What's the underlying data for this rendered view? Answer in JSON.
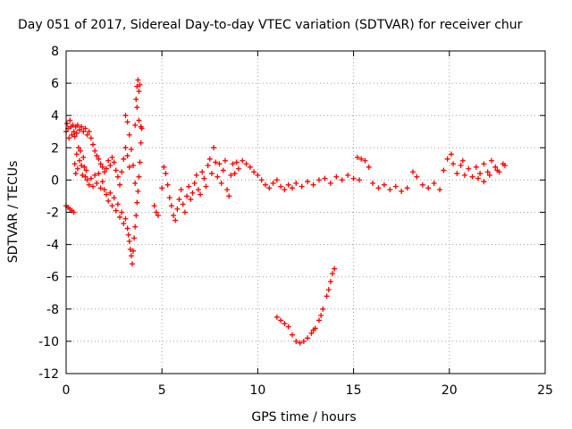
{
  "chart_data": {
    "type": "scatter",
    "title": "Day 051 of 2017, Sidereal Day-to-day VTEC variation (SDTVAR) for receiver chur",
    "xlabel": "GPS time / hours",
    "ylabel": "SDTVAR / TECUs",
    "xlim": [
      0,
      25
    ],
    "ylim": [
      -12,
      8
    ],
    "xticks": [
      0,
      5,
      10,
      15,
      20,
      25
    ],
    "yticks": [
      -12,
      -10,
      -8,
      -6,
      -4,
      -2,
      0,
      2,
      4,
      6,
      8
    ],
    "grid": true,
    "marker": "+",
    "color": "#ff0000",
    "series": [
      {
        "name": "SDTVAR",
        "points": [
          [
            0.0,
            3.0
          ],
          [
            0.05,
            3.5
          ],
          [
            0.1,
            3.2
          ],
          [
            0.15,
            2.6
          ],
          [
            0.2,
            3.7
          ],
          [
            0.25,
            3.3
          ],
          [
            0.3,
            2.8
          ],
          [
            0.35,
            3.4
          ],
          [
            0.4,
            3.0
          ],
          [
            0.45,
            2.7
          ],
          [
            0.5,
            3.3
          ],
          [
            0.55,
            2.9
          ],
          [
            0.6,
            3.4
          ],
          [
            0.7,
            3.1
          ],
          [
            0.8,
            3.3
          ],
          [
            0.9,
            3.0
          ],
          [
            1.0,
            3.2
          ],
          [
            1.1,
            2.8
          ],
          [
            1.2,
            3.0
          ],
          [
            1.3,
            2.6
          ],
          [
            1.4,
            2.2
          ],
          [
            1.5,
            1.8
          ],
          [
            1.6,
            1.5
          ],
          [
            1.7,
            1.3
          ],
          [
            1.8,
            1.0
          ],
          [
            1.9,
            0.8
          ],
          [
            2.0,
            0.5
          ],
          [
            2.1,
            0.7
          ],
          [
            2.2,
            1.2
          ],
          [
            2.3,
            0.9
          ],
          [
            2.4,
            1.4
          ],
          [
            2.5,
            1.1
          ],
          [
            2.6,
            0.6
          ],
          [
            2.7,
            0.2
          ],
          [
            2.8,
            -0.3
          ],
          [
            2.9,
            0.5
          ],
          [
            3.0,
            1.3
          ],
          [
            3.1,
            2.0
          ],
          [
            3.2,
            1.5
          ],
          [
            3.3,
            0.8
          ],
          [
            0.45,
            1.0
          ],
          [
            0.5,
            0.4
          ],
          [
            0.55,
            1.6
          ],
          [
            0.6,
            0.7
          ],
          [
            0.65,
            2.0
          ],
          [
            0.7,
            1.2
          ],
          [
            0.75,
            1.8
          ],
          [
            0.8,
            0.9
          ],
          [
            0.85,
            0.3
          ],
          [
            0.9,
            1.4
          ],
          [
            0.95,
            0.8
          ],
          [
            1.0,
            0.2
          ],
          [
            1.05,
            0.6
          ],
          [
            1.1,
            0.0
          ],
          [
            1.2,
            -0.3
          ],
          [
            1.3,
            0.1
          ],
          [
            1.4,
            -0.4
          ],
          [
            1.5,
            0.3
          ],
          [
            1.6,
            -0.2
          ],
          [
            1.7,
            0.4
          ],
          [
            1.8,
            -0.5
          ],
          [
            1.9,
            -0.1
          ],
          [
            2.0,
            -0.6
          ],
          [
            2.1,
            -0.9
          ],
          [
            2.2,
            -1.3
          ],
          [
            2.3,
            -0.8
          ],
          [
            2.4,
            -1.6
          ],
          [
            2.5,
            -1.1
          ],
          [
            2.6,
            -1.9
          ],
          [
            2.7,
            -1.5
          ],
          [
            2.8,
            -2.3
          ],
          [
            2.9,
            -2.0
          ],
          [
            3.0,
            -2.7
          ],
          [
            3.1,
            -2.4
          ],
          [
            3.2,
            -3.0
          ],
          [
            3.25,
            -3.4
          ],
          [
            3.3,
            -3.8
          ],
          [
            3.35,
            -4.3
          ],
          [
            3.4,
            -4.7
          ],
          [
            3.45,
            -5.2
          ],
          [
            3.5,
            -4.4
          ],
          [
            3.55,
            -3.6
          ],
          [
            3.6,
            -2.9
          ],
          [
            3.65,
            -2.2
          ],
          [
            3.7,
            -1.4
          ],
          [
            3.75,
            -0.7
          ],
          [
            3.8,
            0.2
          ],
          [
            3.85,
            1.1
          ],
          [
            3.9,
            2.3
          ],
          [
            3.95,
            3.2
          ],
          [
            3.1,
            4.0
          ],
          [
            3.2,
            3.6
          ],
          [
            3.3,
            2.8
          ],
          [
            3.4,
            1.9
          ],
          [
            3.5,
            0.9
          ],
          [
            3.6,
            3.4
          ],
          [
            3.65,
            5.0
          ],
          [
            3.7,
            5.8
          ],
          [
            3.75,
            6.2
          ],
          [
            3.8,
            5.5
          ],
          [
            3.85,
            5.9
          ],
          [
            3.7,
            4.5
          ],
          [
            3.8,
            3.7
          ],
          [
            3.9,
            3.3
          ],
          [
            0.0,
            -1.6
          ],
          [
            0.1,
            -1.7
          ],
          [
            0.2,
            -1.8
          ],
          [
            0.3,
            -1.9
          ],
          [
            0.4,
            -2.0
          ],
          [
            3.6,
            -0.2
          ],
          [
            4.6,
            -1.6
          ],
          [
            4.7,
            -2.0
          ],
          [
            4.8,
            -2.2
          ],
          [
            5.0,
            -0.5
          ],
          [
            5.1,
            0.8
          ],
          [
            5.2,
            0.4
          ],
          [
            5.3,
            -0.3
          ],
          [
            5.4,
            -1.1
          ],
          [
            5.5,
            -1.6
          ],
          [
            5.6,
            -2.2
          ],
          [
            5.7,
            -2.5
          ],
          [
            5.8,
            -1.8
          ],
          [
            5.9,
            -1.2
          ],
          [
            6.0,
            -0.6
          ],
          [
            6.1,
            -1.5
          ],
          [
            6.2,
            -2.0
          ],
          [
            6.3,
            -1.0
          ],
          [
            6.4,
            -0.4
          ],
          [
            6.5,
            -1.2
          ],
          [
            6.6,
            -0.8
          ],
          [
            6.7,
            -0.2
          ],
          [
            6.8,
            0.3
          ],
          [
            6.9,
            -0.6
          ],
          [
            7.0,
            -0.9
          ],
          [
            7.1,
            0.5
          ],
          [
            7.2,
            0.1
          ],
          [
            7.3,
            -0.4
          ],
          [
            7.4,
            0.9
          ],
          [
            7.5,
            1.3
          ],
          [
            7.6,
            0.4
          ],
          [
            7.7,
            2.0
          ],
          [
            7.8,
            1.1
          ],
          [
            7.9,
            0.2
          ],
          [
            8.0,
            1.0
          ],
          [
            8.1,
            -0.2
          ],
          [
            8.2,
            0.6
          ],
          [
            8.3,
            1.2
          ],
          [
            8.4,
            -0.6
          ],
          [
            8.5,
            -1.0
          ],
          [
            8.6,
            0.3
          ],
          [
            8.7,
            1.0
          ],
          [
            8.8,
            0.4
          ],
          [
            8.9,
            1.1
          ],
          [
            9.0,
            0.7
          ],
          [
            9.2,
            1.2
          ],
          [
            9.4,
            1.0
          ],
          [
            9.6,
            0.8
          ],
          [
            9.8,
            0.5
          ],
          [
            10.0,
            0.3
          ],
          [
            10.2,
            0.0
          ],
          [
            10.4,
            -0.3
          ],
          [
            10.6,
            -0.5
          ],
          [
            10.8,
            -0.2
          ],
          [
            11.0,
            0.0
          ],
          [
            11.2,
            -0.4
          ],
          [
            11.4,
            -0.6
          ],
          [
            11.6,
            -0.3
          ],
          [
            11.8,
            -0.5
          ],
          [
            12.0,
            -0.2
          ],
          [
            12.3,
            -0.4
          ],
          [
            12.6,
            -0.1
          ],
          [
            12.9,
            -0.3
          ],
          [
            13.2,
            0.0
          ],
          [
            13.5,
            0.1
          ],
          [
            13.8,
            -0.2
          ],
          [
            14.1,
            0.2
          ],
          [
            14.4,
            0.0
          ],
          [
            14.7,
            0.3
          ],
          [
            15.0,
            0.1
          ],
          [
            15.3,
            0.0
          ],
          [
            15.2,
            1.4
          ],
          [
            15.4,
            1.3
          ],
          [
            15.6,
            1.2
          ],
          [
            15.8,
            0.8
          ],
          [
            16.0,
            -0.2
          ],
          [
            16.3,
            -0.5
          ],
          [
            16.6,
            -0.3
          ],
          [
            16.9,
            -0.6
          ],
          [
            17.2,
            -0.4
          ],
          [
            17.5,
            -0.7
          ],
          [
            17.8,
            -0.5
          ],
          [
            18.1,
            0.5
          ],
          [
            18.3,
            0.2
          ],
          [
            18.6,
            -0.3
          ],
          [
            18.9,
            -0.5
          ],
          [
            19.2,
            -0.2
          ],
          [
            19.5,
            -0.6
          ],
          [
            19.7,
            0.6
          ],
          [
            19.9,
            1.3
          ],
          [
            20.1,
            1.6
          ],
          [
            20.2,
            1.0
          ],
          [
            20.4,
            0.4
          ],
          [
            20.6,
            0.9
          ],
          [
            20.8,
            0.3
          ],
          [
            21.0,
            0.7
          ],
          [
            21.2,
            0.2
          ],
          [
            21.4,
            0.8
          ],
          [
            21.6,
            0.4
          ],
          [
            21.8,
            1.0
          ],
          [
            22.0,
            0.5
          ],
          [
            22.2,
            1.2
          ],
          [
            22.4,
            0.8
          ],
          [
            22.6,
            0.5
          ],
          [
            22.8,
            1.0
          ],
          [
            21.5,
            0.1
          ],
          [
            21.8,
            -0.1
          ],
          [
            22.1,
            0.3
          ],
          [
            22.5,
            0.6
          ],
          [
            22.9,
            0.9
          ],
          [
            20.7,
            1.2
          ],
          [
            11.0,
            -8.5
          ],
          [
            11.2,
            -8.7
          ],
          [
            11.4,
            -8.9
          ],
          [
            11.6,
            -9.1
          ],
          [
            11.8,
            -9.6
          ],
          [
            12.0,
            -10.0
          ],
          [
            12.2,
            -10.1
          ],
          [
            12.4,
            -10.0
          ],
          [
            12.6,
            -9.8
          ],
          [
            12.8,
            -9.5
          ],
          [
            13.0,
            -9.2
          ],
          [
            13.2,
            -8.7
          ],
          [
            13.4,
            -8.0
          ],
          [
            13.6,
            -7.2
          ],
          [
            13.8,
            -6.3
          ],
          [
            13.9,
            -5.8
          ],
          [
            14.0,
            -5.5
          ],
          [
            13.7,
            -6.8
          ],
          [
            13.3,
            -8.4
          ],
          [
            12.9,
            -9.3
          ]
        ]
      }
    ]
  }
}
